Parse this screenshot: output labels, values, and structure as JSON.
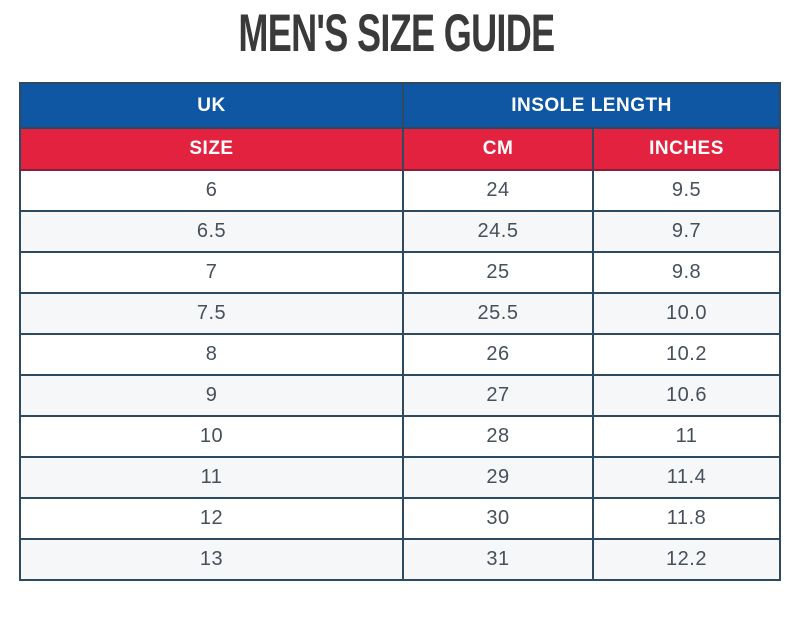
{
  "page": {
    "title": "MEN'S SIZE GUIDE"
  },
  "table": {
    "header_top": {
      "uk": "UK",
      "insole_length": "INSOLE LENGTH"
    },
    "header_sub": {
      "size": "SIZE",
      "cm": "CM",
      "inches": "INCHES"
    },
    "rows": [
      {
        "uk": "6",
        "cm": "24",
        "inches": "9.5"
      },
      {
        "uk": "6.5",
        "cm": "24.5",
        "inches": "9.7"
      },
      {
        "uk": "7",
        "cm": "25",
        "inches": "9.8"
      },
      {
        "uk": "7.5",
        "cm": "25.5",
        "inches": "10.0"
      },
      {
        "uk": "8",
        "cm": "26",
        "inches": "10.2"
      },
      {
        "uk": "9",
        "cm": "27",
        "inches": "10.6"
      },
      {
        "uk": "10",
        "cm": "28",
        "inches": "11"
      },
      {
        "uk": "11",
        "cm": "29",
        "inches": "11.4"
      },
      {
        "uk": "12",
        "cm": "30",
        "inches": "11.8"
      },
      {
        "uk": "13",
        "cm": "31",
        "inches": "12.2"
      }
    ]
  },
  "colors": {
    "header_blue": "#0f57a3",
    "header_red": "#e32240",
    "grid_border": "#2e4a60",
    "red_header_bottom_border": "#8c1c38",
    "alt_row_background": "#f6f7f8",
    "title_text": "#3a3a3a",
    "cell_text": "#47505a",
    "header_text": "#ffffff"
  }
}
